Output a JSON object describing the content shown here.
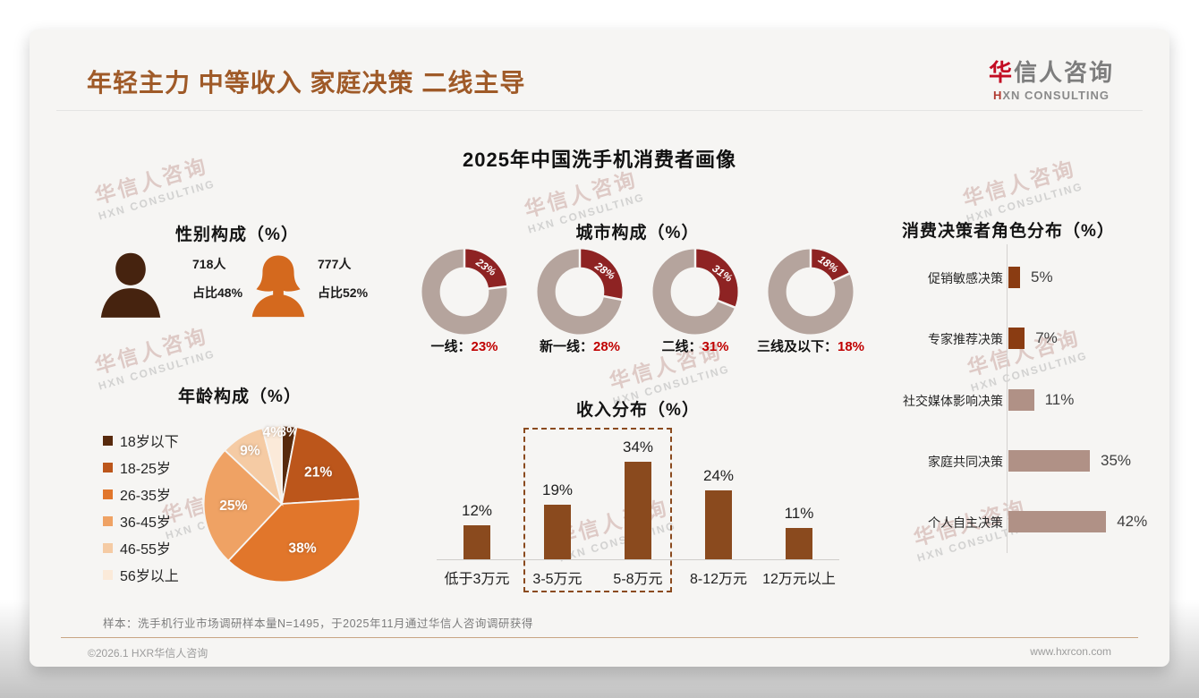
{
  "page": {
    "header": {
      "title": "年轻主力 中等收入 家庭决策 二线主导"
    },
    "logo": {
      "cn_first": "华",
      "cn_rest": "信人咨询",
      "en_first": "H",
      "en_rest": "XN CONSULTING"
    },
    "main_title": "2025年中国洗手机消费者画像",
    "watermark": {
      "cn": "华信人咨询",
      "en": "HXN CONSULTING"
    },
    "footnote": "样本：洗手机行业市场调研样本量N=1495，于2025年11月通过华信人咨询调研获得",
    "footer": {
      "left": "©2026.1 HXR华信人咨询",
      "right": "www.hxrcon.com"
    }
  },
  "chart_data": [
    {
      "type": "pictogram",
      "title": "性别构成（%）",
      "items": [
        {
          "name": "male",
          "count": "718人",
          "share": "占比48%",
          "color": "#46230f"
        },
        {
          "name": "female",
          "count": "777人",
          "share": "占比52%",
          "color": "#d4691e"
        }
      ]
    },
    {
      "type": "pie",
      "variant": "donut-grid",
      "title": "城市构成（%）",
      "categories": [
        "一线",
        "新一线",
        "二线",
        "三线及以下"
      ],
      "values": [
        23,
        28,
        31,
        18
      ],
      "label_colon": "：",
      "slice_color": "#8e2323",
      "rest_color": "#b5a49d",
      "value_color": "#c00000"
    },
    {
      "type": "pie",
      "title": "年龄构成（%）",
      "categories": [
        "18岁以下",
        "18-25岁",
        "26-35岁",
        "36-45岁",
        "46-55岁",
        "56岁以上"
      ],
      "values": [
        3,
        21,
        38,
        25,
        9,
        4
      ],
      "colors": [
        "#582a0d",
        "#bc561b",
        "#e1762b",
        "#efa264",
        "#f5cba4",
        "#fbead9"
      ],
      "legend_position": "left",
      "start_angle": 0
    },
    {
      "type": "bar",
      "title": "收入分布（%）",
      "categories": [
        "低于3万元",
        "3-5万元",
        "5-8万元",
        "8-12万元",
        "12万元以上"
      ],
      "values": [
        12,
        19,
        34,
        24,
        11
      ],
      "bar_color": "#8a4a1e",
      "ylim": [
        0,
        40
      ],
      "highlight_indices": [
        1,
        2
      ]
    },
    {
      "type": "bar",
      "orientation": "horizontal",
      "title": "消费决策者角色分布（%）",
      "categories": [
        "促销敏感决策",
        "专家推荐决策",
        "社交媒体影响决策",
        "家庭共同决策",
        "个人自主决策"
      ],
      "values": [
        5,
        7,
        11,
        35,
        42
      ],
      "bar_colors": [
        "#8a3c12",
        "#8a3c12",
        "#b09186",
        "#b09186",
        "#b09186"
      ],
      "xlim": [
        0,
        45
      ]
    }
  ]
}
